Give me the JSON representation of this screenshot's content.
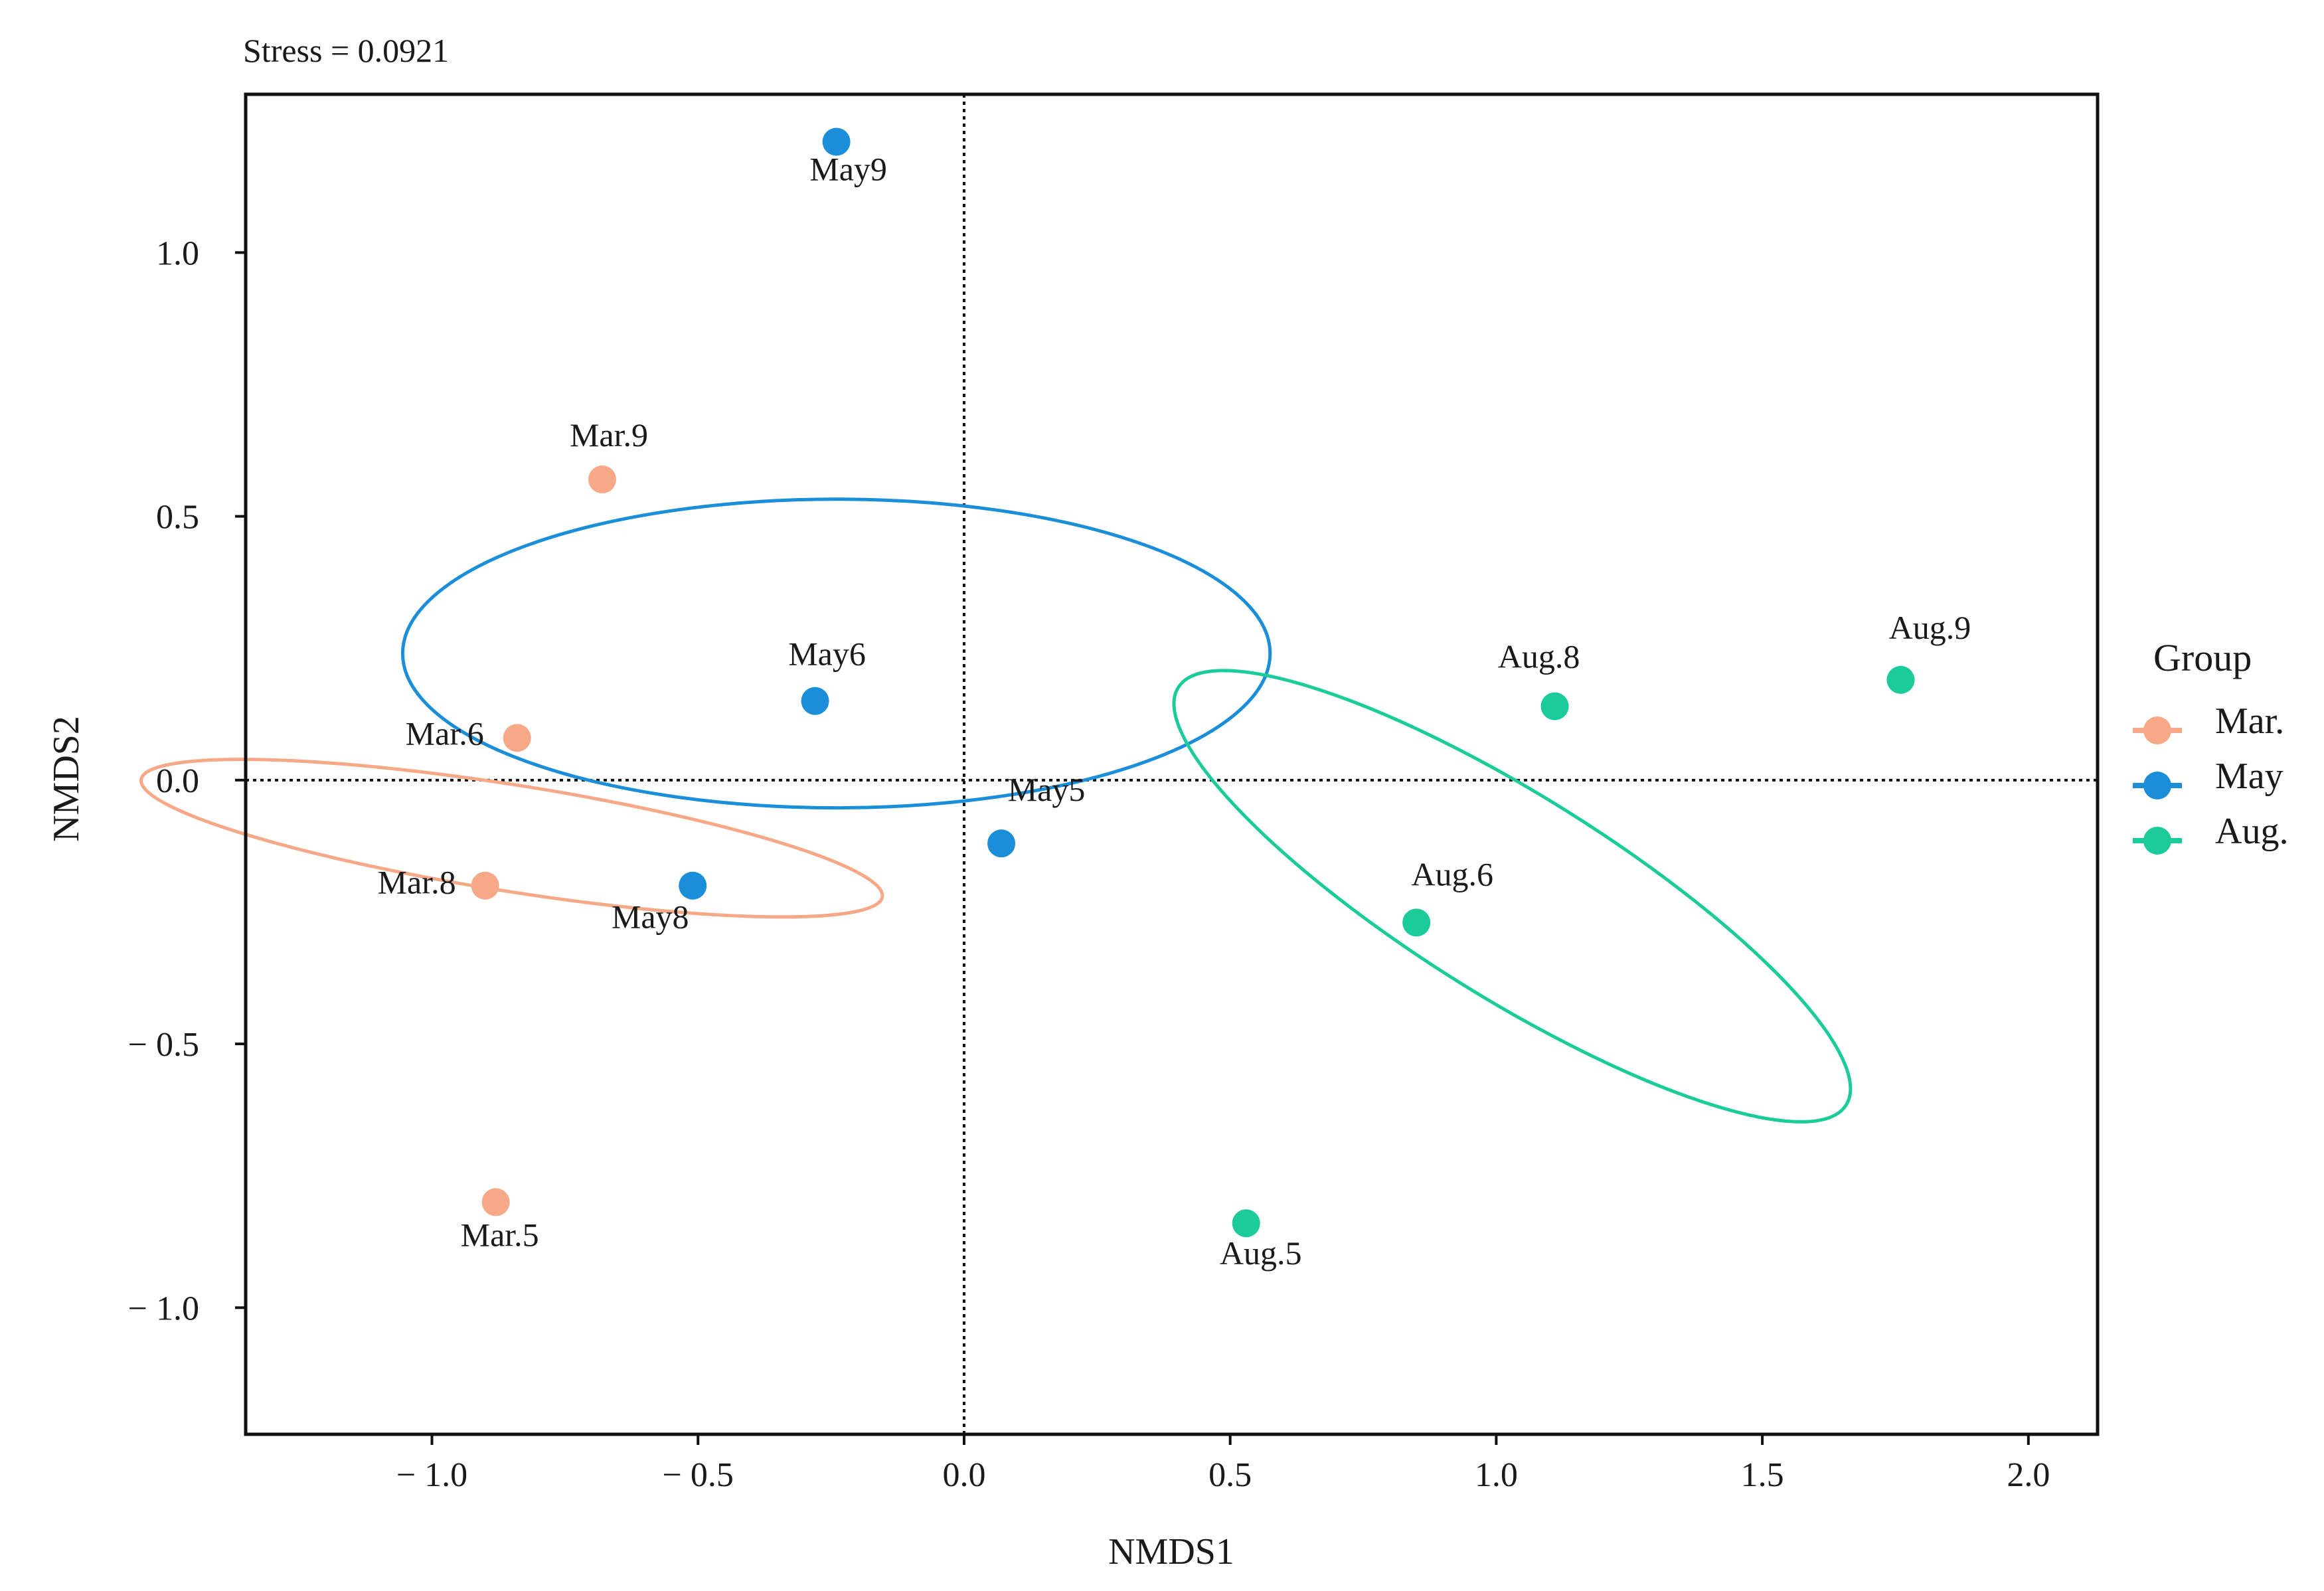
{
  "chart_data": {
    "type": "scatter",
    "title": "Stress = 0.0921",
    "xlabel": "NMDS1",
    "ylabel": "NMDS2",
    "xlim": [
      -1.35,
      2.13
    ],
    "ylim": [
      -1.24,
      1.3
    ],
    "xticks": [
      -1.0,
      -0.5,
      0.0,
      0.5,
      1.0,
      1.5,
      2.0
    ],
    "xtick_labels": [
      "− 1.0",
      "− 0.5",
      "0.0",
      "0.5",
      "1.0",
      "1.5",
      "2.0"
    ],
    "yticks": [
      1.0,
      0.5,
      0.0,
      -0.5,
      -1.0
    ],
    "ytick_labels": [
      "1.0",
      "0.5",
      "0.0",
      "− 0.5",
      "− 1.0"
    ],
    "grid": false,
    "reference_lines": {
      "x": 0,
      "y": 0,
      "style": "dotted"
    },
    "legend": {
      "title": "Group",
      "placement": "right"
    },
    "series": [
      {
        "name": "Mar.",
        "color": "#F7A887",
        "points": [
          {
            "label": "Mar.9",
            "x": -0.68,
            "y": 0.57
          },
          {
            "label": "Mar.6",
            "x": -0.84,
            "y": 0.08
          },
          {
            "label": "Mar.8",
            "x": -0.9,
            "y": -0.2
          },
          {
            "label": "Mar.5",
            "x": -0.88,
            "y": -0.8
          }
        ],
        "ellipse": {
          "cx": -0.85,
          "cy": -0.11,
          "rx": 0.1,
          "ry": 0.705,
          "angle": -81
        }
      },
      {
        "name": "May",
        "color": "#1A8ED8",
        "points": [
          {
            "label": "May9",
            "x": -0.24,
            "y": 1.21
          },
          {
            "label": "May6",
            "x": -0.28,
            "y": 0.15
          },
          {
            "label": "May8",
            "x": -0.51,
            "y": -0.2
          },
          {
            "label": "May5",
            "x": 0.07,
            "y": -0.12
          }
        ],
        "ellipse": {
          "cx": -0.24,
          "cy": 0.24,
          "rx": 0.29,
          "ry": 0.815,
          "angle": 90
        }
      },
      {
        "name": "Aug.",
        "color": "#1BCC9A",
        "points": [
          {
            "label": "Aug.8",
            "x": 1.11,
            "y": 0.14
          },
          {
            "label": "Aug.9",
            "x": 1.76,
            "y": 0.19
          },
          {
            "label": "Aug.6",
            "x": 0.85,
            "y": -0.27
          },
          {
            "label": "Aug.5",
            "x": 0.53,
            "y": -0.84
          }
        ],
        "ellipse": {
          "cx": 1.03,
          "cy": -0.22,
          "rx": 0.74,
          "ry": 0.19,
          "angle": 32
        }
      }
    ]
  }
}
